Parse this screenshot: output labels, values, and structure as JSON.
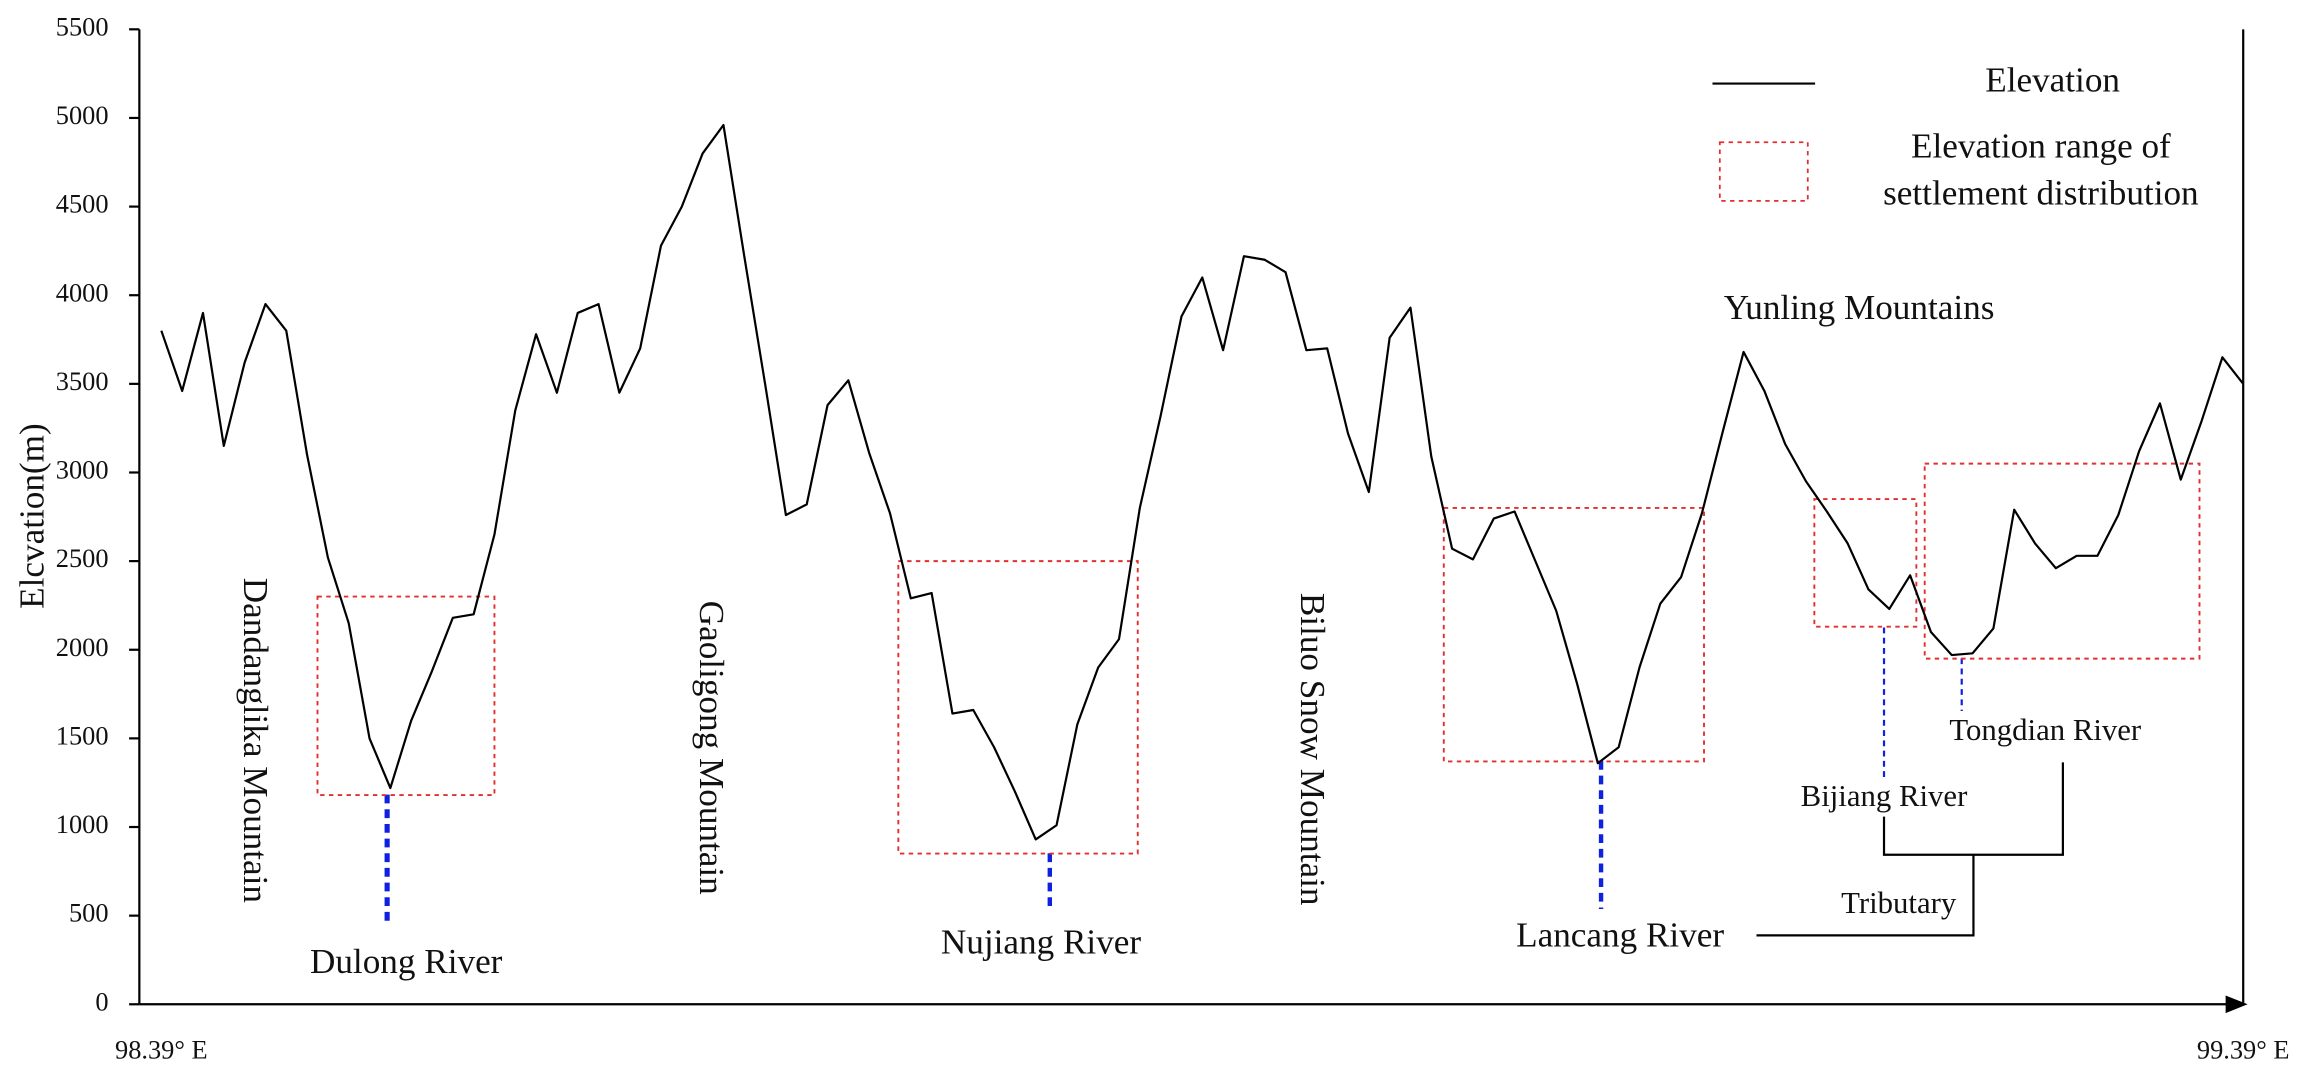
{
  "chart_data": {
    "type": "line",
    "y_label": "Elcvation(m)",
    "xlim": [
      98.39,
      99.39
    ],
    "xticks": [
      {
        "value": 98.39,
        "label": "98.39° E"
      },
      {
        "value": 99.39,
        "label": "99.39° E"
      }
    ],
    "ylim": [
      0,
      5500
    ],
    "yticks": [
      0,
      500,
      1000,
      1500,
      2000,
      2500,
      3000,
      3500,
      4000,
      4500,
      5000,
      5500
    ],
    "x": [
      98.39,
      98.4,
      98.41,
      98.42,
      98.43,
      98.44,
      98.45,
      98.46,
      98.47,
      98.48,
      98.49,
      98.5,
      98.51,
      98.52,
      98.53,
      98.54,
      98.55,
      98.56,
      98.57,
      98.58,
      98.59,
      98.6,
      98.61,
      98.62,
      98.63,
      98.64,
      98.65,
      98.66,
      98.67,
      98.68,
      98.69,
      98.7,
      98.71,
      98.72,
      98.73,
      98.74,
      98.75,
      98.76,
      98.77,
      98.78,
      98.79,
      98.8,
      98.81,
      98.82,
      98.83,
      98.84,
      98.85,
      98.86,
      98.87,
      98.88,
      98.89,
      98.9,
      98.91,
      98.92,
      98.93,
      98.94,
      98.95,
      98.96,
      98.97,
      98.98,
      98.99,
      99.0,
      99.01,
      99.02,
      99.03,
      99.04,
      99.05,
      99.06,
      99.07,
      99.08,
      99.09,
      99.1,
      99.11,
      99.12,
      99.13,
      99.14,
      99.15,
      99.16,
      99.17,
      99.18,
      99.19,
      99.2,
      99.21,
      99.22,
      99.23,
      99.24,
      99.25,
      99.26,
      99.27,
      99.28,
      99.29,
      99.3,
      99.31,
      99.32,
      99.33,
      99.34,
      99.35,
      99.36,
      99.37,
      99.38,
      99.39
    ],
    "series": [
      {
        "name": "Elevation",
        "color": "#000000",
        "values": [
          3800,
          3460,
          3900,
          3150,
          3620,
          3950,
          3800,
          3100,
          2520,
          2150,
          1500,
          1220,
          1600,
          1880,
          2180,
          2200,
          2650,
          3350,
          3780,
          3450,
          3900,
          3950,
          3450,
          3700,
          4280,
          4500,
          4800,
          4960,
          4220,
          3500,
          2760,
          2820,
          3380,
          3520,
          3110,
          2770,
          2290,
          2320,
          1640,
          1660,
          1450,
          1200,
          930,
          1010,
          1580,
          1900,
          2060,
          2800,
          3320,
          3880,
          4100,
          3690,
          4220,
          4200,
          4130,
          3690,
          3700,
          3220,
          2890,
          3760,
          3930,
          3090,
          2570,
          2510,
          2740,
          2780,
          2500,
          2220,
          1810,
          1360,
          1450,
          1900,
          2260,
          2410,
          2770,
          3230,
          3680,
          3460,
          3160,
          2950,
          2780,
          2600,
          2340,
          2230,
          2420,
          2100,
          1970,
          1980,
          2120,
          2790,
          2600,
          2460,
          2530,
          2530,
          2760,
          3120,
          3390,
          2960,
          3290,
          3650,
          3500
        ]
      }
    ],
    "range_label": [
      "Elevation range of",
      "settlement distribution"
    ],
    "range_color": "#e03030",
    "ranges": [
      {
        "x": [
          98.465,
          98.55
        ],
        "y": [
          1180,
          2300
        ]
      },
      {
        "x": [
          98.744,
          98.859
        ],
        "y": [
          850,
          2500
        ]
      },
      {
        "x": [
          99.006,
          99.131
        ],
        "y": [
          1370,
          2800
        ]
      },
      {
        "x": [
          99.184,
          99.233
        ],
        "y": [
          2130,
          2850
        ]
      },
      {
        "x": [
          99.237,
          99.369
        ],
        "y": [
          1950,
          3050
        ]
      }
    ],
    "mountains": [
      "Dandanglika Mountain",
      "Gaoligong Mountain",
      "Biluo Snow Mountain",
      "Yunling Mountains"
    ],
    "rivers": [
      "Dulong River",
      "Nujiang River",
      "Lancang River",
      "Bijiang River",
      "Tongdian River"
    ],
    "tributary_label": "Tributary"
  }
}
